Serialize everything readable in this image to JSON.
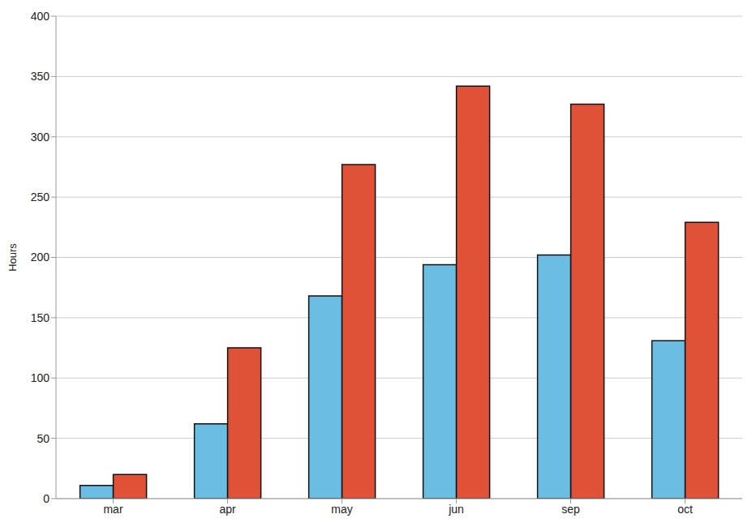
{
  "chart_data": {
    "type": "bar",
    "y_label": "Hours",
    "categories": [
      "mar",
      "apr",
      "may",
      "jun",
      "sep",
      "oct"
    ],
    "series": [
      {
        "color": "#6bbde3",
        "values": [
          11,
          62,
          168,
          194,
          202,
          131
        ]
      },
      {
        "color": "#e05238",
        "values": [
          20,
          125,
          277,
          342,
          327,
          229
        ]
      }
    ],
    "ylim": [
      0,
      400
    ],
    "yticks": [
      0,
      50,
      100,
      150,
      200,
      250,
      300,
      350,
      400
    ],
    "grid": true
  }
}
